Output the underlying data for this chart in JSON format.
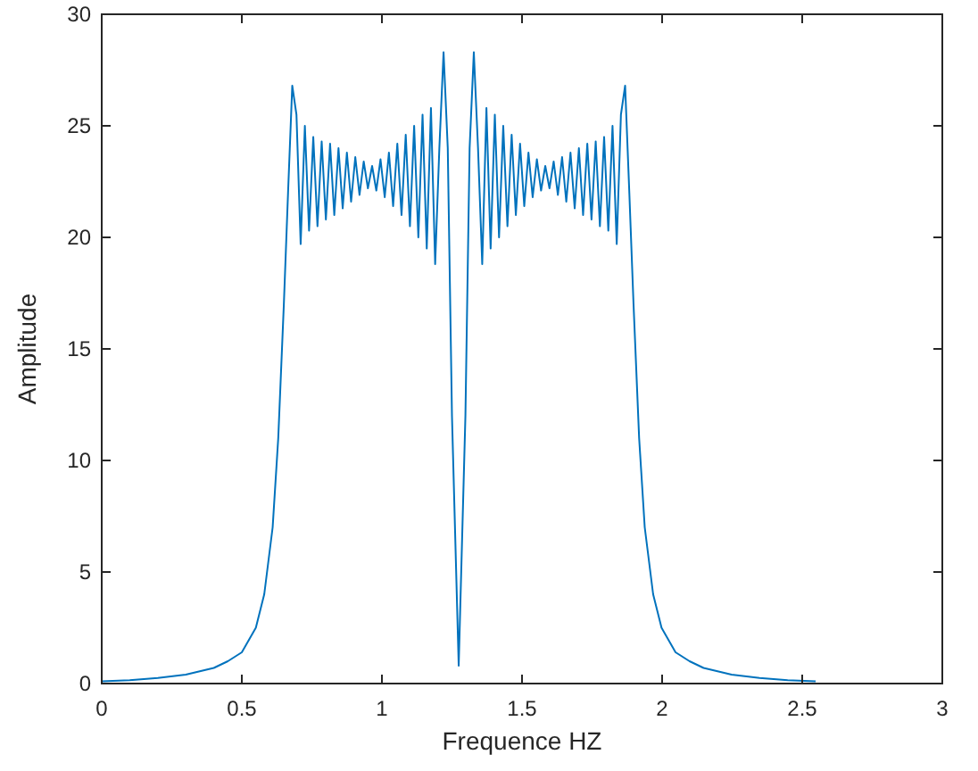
{
  "chart_data": {
    "type": "line",
    "xlabel": "Frequence HZ",
    "ylabel": "Amplitude",
    "xlim": [
      0,
      3
    ],
    "ylim": [
      0,
      30
    ],
    "xticks": [
      0,
      0.5,
      1,
      1.5,
      2,
      2.5,
      3
    ],
    "yticks": [
      0,
      5,
      10,
      15,
      20,
      25,
      30
    ],
    "grid": false,
    "series": [
      {
        "color": "#0072bd",
        "x": [
          0,
          0.1,
          0.2,
          0.3,
          0.4,
          0.45,
          0.5,
          0.55,
          0.58,
          0.61,
          0.63,
          0.65,
          0.665,
          0.68,
          0.695,
          0.71,
          0.725,
          0.74,
          0.755,
          0.77,
          0.785,
          0.8,
          0.815,
          0.83,
          0.845,
          0.86,
          0.875,
          0.89,
          0.905,
          0.92,
          0.935,
          0.95,
          0.965,
          0.98,
          0.995,
          1.01,
          1.025,
          1.04,
          1.055,
          1.07,
          1.085,
          1.1,
          1.115,
          1.13,
          1.145,
          1.16,
          1.175,
          1.19,
          1.205,
          1.22,
          1.235,
          1.25,
          1.274,
          1.298,
          1.313,
          1.328,
          1.343,
          1.358,
          1.373,
          1.388,
          1.403,
          1.418,
          1.433,
          1.448,
          1.463,
          1.478,
          1.493,
          1.508,
          1.523,
          1.538,
          1.553,
          1.568,
          1.583,
          1.598,
          1.613,
          1.628,
          1.643,
          1.658,
          1.673,
          1.688,
          1.703,
          1.718,
          1.733,
          1.748,
          1.763,
          1.778,
          1.793,
          1.808,
          1.823,
          1.838,
          1.853,
          1.868,
          1.883,
          1.898,
          1.918,
          1.938,
          1.968,
          1.998,
          2.048,
          2.098,
          2.148,
          2.248,
          2.348,
          2.448,
          2.548
        ],
        "values": [
          0.1,
          0.15,
          0.25,
          0.4,
          0.7,
          1.0,
          1.4,
          2.5,
          4,
          7,
          11,
          17,
          22,
          26.8,
          25.5,
          19.7,
          25,
          20.3,
          24.5,
          20.5,
          24.3,
          20.8,
          24.2,
          21,
          24,
          21.3,
          23.8,
          21.6,
          23.6,
          21.9,
          23.4,
          22.2,
          23.2,
          22.1,
          23.5,
          21.8,
          23.8,
          21.4,
          24.2,
          21,
          24.6,
          20.5,
          25,
          20,
          25.5,
          19.5,
          25.8,
          18.8,
          24,
          28.3,
          24,
          12,
          0.8,
          12,
          24,
          28.3,
          24,
          18.8,
          25.8,
          19.5,
          25.5,
          20,
          25,
          20.5,
          24.6,
          21,
          24.2,
          21.4,
          23.8,
          21.8,
          23.5,
          22.1,
          23.2,
          22.2,
          23.4,
          21.9,
          23.6,
          21.6,
          23.8,
          21.3,
          24,
          21,
          24.2,
          20.8,
          24.3,
          20.5,
          24.5,
          20.3,
          25,
          19.7,
          25.5,
          26.8,
          22,
          17,
          11,
          7,
          4,
          2.5,
          1.4,
          1.0,
          0.7,
          0.4,
          0.25,
          0.15,
          0.1
        ]
      }
    ]
  }
}
